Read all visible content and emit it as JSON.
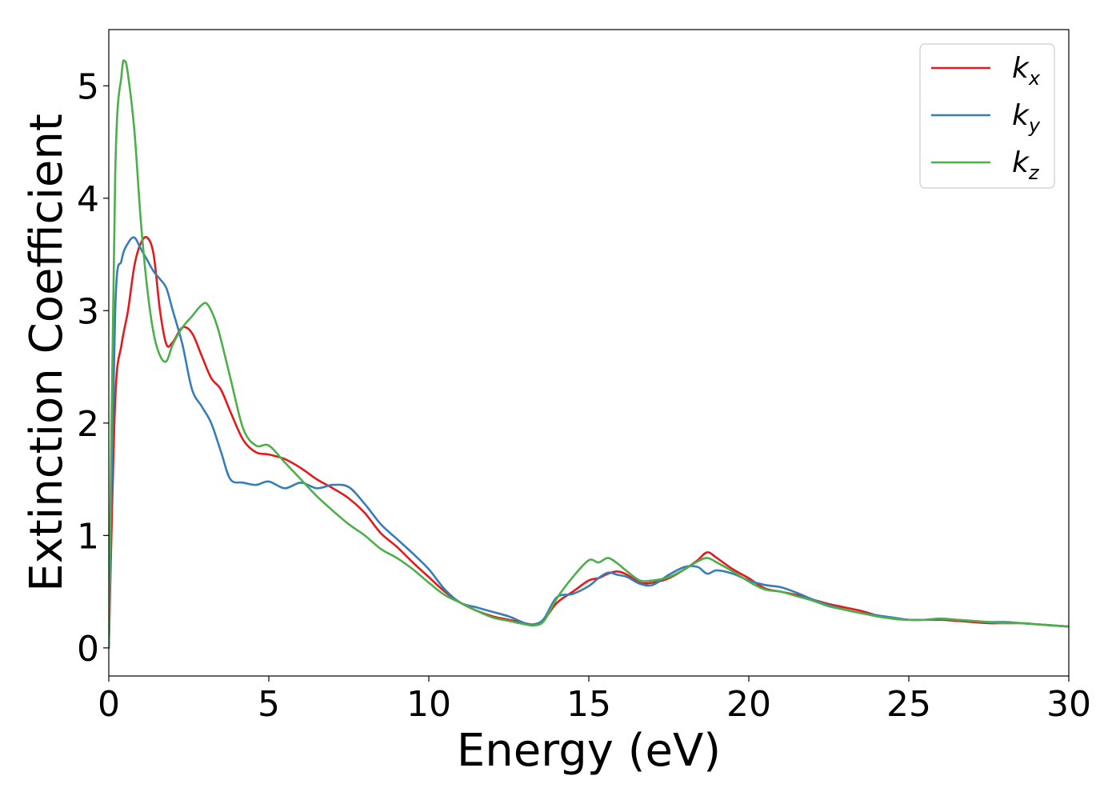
{
  "chart_data": {
    "type": "line",
    "title": "",
    "xlabel": "Energy (eV)",
    "ylabel": "Extinction Coefficient",
    "xlim": [
      0,
      30
    ],
    "ylim": [
      -0.25,
      5.5
    ],
    "xticks": [
      0,
      5,
      10,
      15,
      20,
      25,
      30
    ],
    "yticks": [
      0,
      1,
      2,
      3,
      4,
      5
    ],
    "grid": false,
    "legend_position": "top-right",
    "series": [
      {
        "name": "k",
        "subscript": "x",
        "color": "#e41a1c",
        "x": [
          0,
          0.2,
          0.4,
          0.6,
          0.8,
          1.0,
          1.2,
          1.4,
          1.6,
          1.8,
          2.0,
          2.3,
          2.6,
          2.9,
          3.2,
          3.5,
          3.8,
          4.2,
          4.6,
          5.0,
          5.5,
          6.0,
          6.5,
          7.0,
          7.5,
          8.0,
          8.5,
          9.0,
          9.5,
          10.0,
          10.5,
          11.0,
          11.5,
          12.0,
          12.5,
          13.0,
          13.3,
          13.6,
          14.0,
          14.5,
          15.0,
          15.3,
          15.6,
          15.9,
          16.2,
          16.6,
          17.0,
          17.5,
          18.0,
          18.4,
          18.7,
          19.0,
          19.5,
          20.0,
          20.5,
          21.0,
          21.5,
          22.0,
          22.5,
          23.0,
          23.5,
          24.0,
          24.5,
          25.0,
          25.5,
          26.0,
          26.5,
          27.0,
          27.5,
          28.0,
          28.5,
          29.0,
          29.5,
          30.0
        ],
        "y": [
          0,
          2.2,
          2.7,
          3.0,
          3.4,
          3.6,
          3.65,
          3.5,
          3.0,
          2.7,
          2.72,
          2.85,
          2.8,
          2.6,
          2.4,
          2.3,
          2.1,
          1.85,
          1.74,
          1.72,
          1.68,
          1.6,
          1.5,
          1.42,
          1.33,
          1.2,
          1.02,
          0.9,
          0.76,
          0.63,
          0.5,
          0.4,
          0.33,
          0.28,
          0.25,
          0.22,
          0.21,
          0.25,
          0.4,
          0.5,
          0.6,
          0.62,
          0.66,
          0.68,
          0.65,
          0.58,
          0.58,
          0.62,
          0.7,
          0.78,
          0.85,
          0.8,
          0.7,
          0.62,
          0.53,
          0.5,
          0.47,
          0.43,
          0.39,
          0.36,
          0.33,
          0.29,
          0.26,
          0.25,
          0.25,
          0.25,
          0.24,
          0.23,
          0.22,
          0.22,
          0.22,
          0.21,
          0.2,
          0.19
        ]
      },
      {
        "name": "k",
        "subscript": "y",
        "color": "#377eb8",
        "x": [
          0,
          0.2,
          0.4,
          0.6,
          0.8,
          1.0,
          1.2,
          1.4,
          1.6,
          1.8,
          2.0,
          2.3,
          2.6,
          2.9,
          3.2,
          3.5,
          3.8,
          4.2,
          4.6,
          5.0,
          5.5,
          6.0,
          6.5,
          7.0,
          7.5,
          8.0,
          8.5,
          9.0,
          9.5,
          10.0,
          10.5,
          11.0,
          11.5,
          12.0,
          12.5,
          13.0,
          13.3,
          13.6,
          14.0,
          14.5,
          15.0,
          15.3,
          15.6,
          15.9,
          16.2,
          16.6,
          17.0,
          17.5,
          18.0,
          18.4,
          18.7,
          19.0,
          19.5,
          20.0,
          20.5,
          21.0,
          21.5,
          22.0,
          22.5,
          23.0,
          23.5,
          24.0,
          24.5,
          25.0,
          25.5,
          26.0,
          26.5,
          27.0,
          27.5,
          28.0,
          28.5,
          29.0,
          29.5,
          30.0
        ],
        "y": [
          0,
          3.0,
          3.45,
          3.6,
          3.65,
          3.55,
          3.45,
          3.35,
          3.28,
          3.2,
          3.0,
          2.7,
          2.3,
          2.15,
          2.0,
          1.75,
          1.5,
          1.47,
          1.45,
          1.48,
          1.42,
          1.47,
          1.42,
          1.45,
          1.43,
          1.28,
          1.1,
          0.97,
          0.84,
          0.7,
          0.52,
          0.4,
          0.36,
          0.32,
          0.28,
          0.22,
          0.21,
          0.26,
          0.45,
          0.48,
          0.55,
          0.62,
          0.67,
          0.65,
          0.63,
          0.57,
          0.56,
          0.65,
          0.72,
          0.72,
          0.66,
          0.69,
          0.66,
          0.6,
          0.56,
          0.54,
          0.49,
          0.43,
          0.38,
          0.34,
          0.31,
          0.29,
          0.27,
          0.25,
          0.25,
          0.26,
          0.25,
          0.24,
          0.23,
          0.23,
          0.22,
          0.21,
          0.2,
          0.19
        ]
      },
      {
        "name": "k",
        "subscript": "z",
        "color": "#4daf4a",
        "x": [
          0,
          0.2,
          0.4,
          0.5,
          0.6,
          0.8,
          1.0,
          1.2,
          1.4,
          1.6,
          1.8,
          2.0,
          2.3,
          2.6,
          2.9,
          3.1,
          3.4,
          3.8,
          4.2,
          4.6,
          5.0,
          5.5,
          6.0,
          6.5,
          7.0,
          7.5,
          8.0,
          8.5,
          9.0,
          9.5,
          10.0,
          10.5,
          11.0,
          11.5,
          12.0,
          12.5,
          13.0,
          13.3,
          13.6,
          14.0,
          14.5,
          15.0,
          15.3,
          15.6,
          15.9,
          16.2,
          16.6,
          17.0,
          17.5,
          18.0,
          18.4,
          18.7,
          19.0,
          19.5,
          20.0,
          20.5,
          21.0,
          21.5,
          22.0,
          22.5,
          23.0,
          23.5,
          24.0,
          24.5,
          25.0,
          25.5,
          26.0,
          26.5,
          27.0,
          27.5,
          28.0,
          28.5,
          29.0,
          29.5,
          30.0
        ],
        "y": [
          0,
          4.2,
          5.1,
          5.22,
          5.1,
          4.6,
          3.8,
          3.2,
          2.8,
          2.6,
          2.55,
          2.7,
          2.85,
          2.95,
          3.05,
          3.05,
          2.85,
          2.4,
          1.95,
          1.8,
          1.8,
          1.65,
          1.5,
          1.35,
          1.22,
          1.1,
          1.0,
          0.88,
          0.8,
          0.7,
          0.58,
          0.47,
          0.4,
          0.33,
          0.27,
          0.24,
          0.21,
          0.2,
          0.24,
          0.44,
          0.63,
          0.78,
          0.76,
          0.8,
          0.75,
          0.68,
          0.6,
          0.6,
          0.63,
          0.7,
          0.77,
          0.8,
          0.76,
          0.68,
          0.59,
          0.52,
          0.5,
          0.46,
          0.42,
          0.37,
          0.34,
          0.31,
          0.28,
          0.26,
          0.25,
          0.25,
          0.26,
          0.25,
          0.24,
          0.23,
          0.22,
          0.22,
          0.21,
          0.2,
          0.19
        ]
      }
    ]
  }
}
